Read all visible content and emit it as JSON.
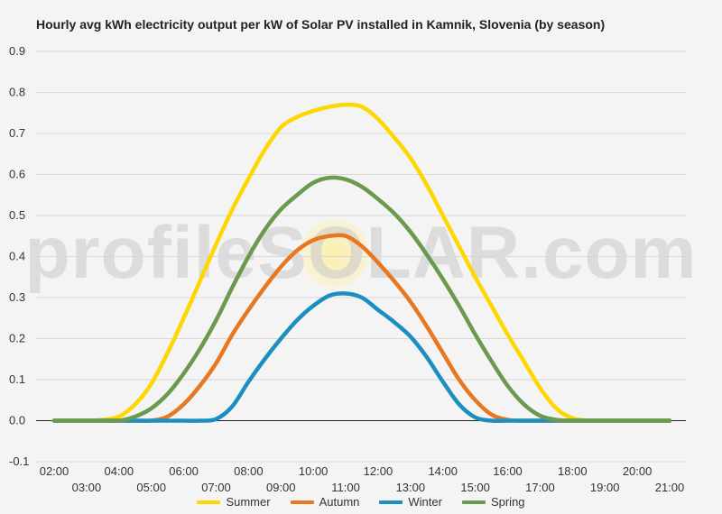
{
  "chart_data": {
    "type": "line",
    "title": "Hourly avg kWh electricity output per kW of Solar PV installed in Kamnik, Slovenia (by season)",
    "watermark": "profileSOLAR.com",
    "xlabel": "",
    "ylabel": "",
    "ylim": [
      -0.1,
      0.9
    ],
    "yticks": [
      "-0.1",
      "0.0",
      "0.1",
      "0.2",
      "0.3",
      "0.4",
      "0.5",
      "0.6",
      "0.7",
      "0.8",
      "0.9"
    ],
    "xticks_top": [
      "02:00",
      "04:00",
      "06:00",
      "08:00",
      "10:00",
      "12:00",
      "14:00",
      "16:00",
      "18:00",
      "20:00"
    ],
    "xticks_bottom": [
      "03:00",
      "05:00",
      "07:00",
      "09:00",
      "11:00",
      "13:00",
      "15:00",
      "17:00",
      "19:00",
      "21:00"
    ],
    "grid": true,
    "legend_position": "bottom",
    "x": [
      "02:00",
      "02:30",
      "03:00",
      "03:30",
      "04:00",
      "04:30",
      "05:00",
      "05:30",
      "06:00",
      "06:30",
      "07:00",
      "07:30",
      "08:00",
      "08:30",
      "09:00",
      "09:30",
      "10:00",
      "10:30",
      "11:00",
      "11:30",
      "12:00",
      "12:30",
      "13:00",
      "13:30",
      "14:00",
      "14:30",
      "15:00",
      "15:30",
      "16:00",
      "16:30",
      "17:00",
      "17:30",
      "18:00",
      "18:30",
      "19:00",
      "19:30",
      "20:00",
      "20:30",
      "21:00"
    ],
    "series": [
      {
        "name": "Summer",
        "color": "#ffd700",
        "values": [
          0,
          0,
          0,
          0.002,
          0.01,
          0.04,
          0.09,
          0.165,
          0.25,
          0.34,
          0.43,
          0.515,
          0.59,
          0.66,
          0.715,
          0.74,
          0.755,
          0.765,
          0.77,
          0.765,
          0.735,
          0.69,
          0.64,
          0.575,
          0.5,
          0.425,
          0.35,
          0.28,
          0.21,
          0.145,
          0.08,
          0.03,
          0.006,
          0,
          0,
          0,
          0,
          0,
          0
        ]
      },
      {
        "name": "Autumn",
        "color": "#e87722",
        "values": [
          0,
          0,
          0,
          0,
          0,
          0,
          0,
          0.01,
          0.04,
          0.085,
          0.14,
          0.21,
          0.27,
          0.325,
          0.375,
          0.415,
          0.44,
          0.45,
          0.45,
          0.425,
          0.385,
          0.34,
          0.29,
          0.23,
          0.165,
          0.1,
          0.05,
          0.015,
          0.002,
          0,
          0,
          0,
          0,
          0,
          0,
          0,
          0,
          0,
          0
        ]
      },
      {
        "name": "Winter",
        "color": "#1c8fc0",
        "values": [
          0,
          0,
          0,
          0,
          0,
          0,
          0,
          0,
          0,
          0,
          0.004,
          0.035,
          0.095,
          0.15,
          0.2,
          0.245,
          0.28,
          0.305,
          0.31,
          0.3,
          0.27,
          0.24,
          0.205,
          0.155,
          0.095,
          0.04,
          0.008,
          0,
          0,
          0,
          0,
          0,
          0,
          0,
          0,
          0,
          0,
          0,
          0
        ]
      },
      {
        "name": "Spring",
        "color": "#6a9a4e",
        "values": [
          0,
          0,
          0,
          0,
          0,
          0.01,
          0.03,
          0.065,
          0.115,
          0.175,
          0.245,
          0.325,
          0.4,
          0.465,
          0.515,
          0.55,
          0.58,
          0.592,
          0.588,
          0.57,
          0.54,
          0.505,
          0.46,
          0.405,
          0.345,
          0.28,
          0.21,
          0.145,
          0.085,
          0.04,
          0.012,
          0.002,
          0,
          0,
          0,
          0,
          0,
          0,
          0
        ]
      }
    ]
  }
}
